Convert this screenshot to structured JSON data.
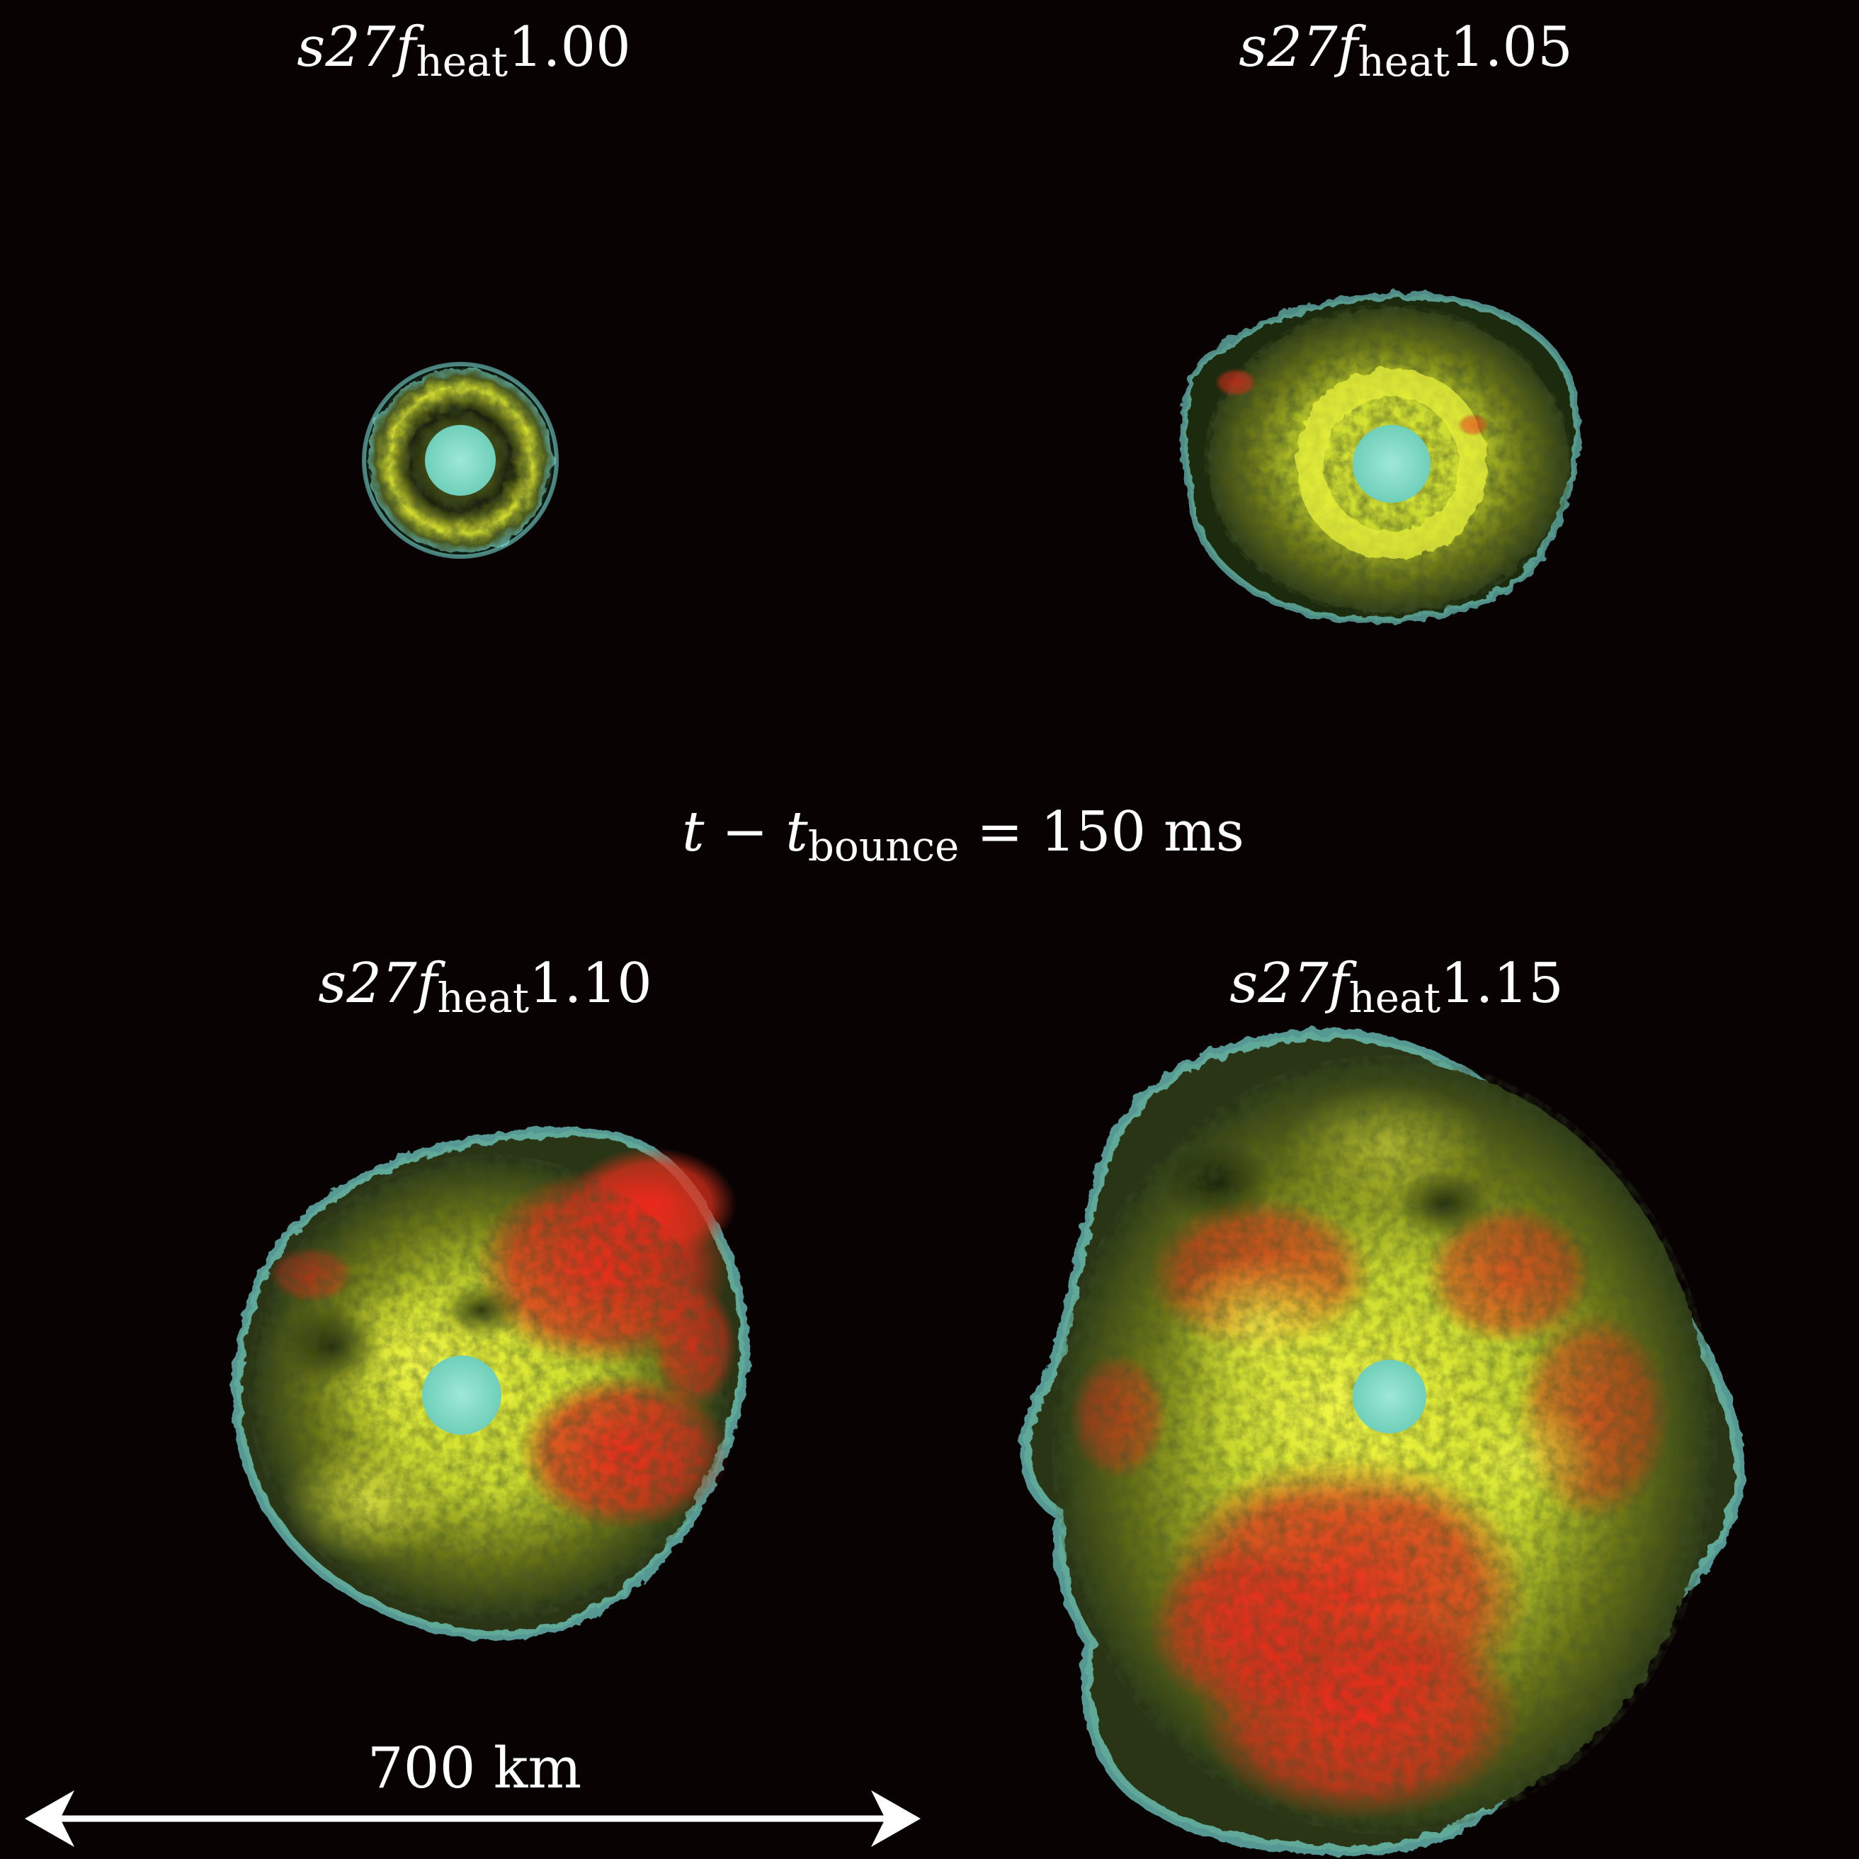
{
  "panels": [
    {
      "model": "s27",
      "var": "f",
      "sub": "heat",
      "value": "1.00"
    },
    {
      "model": "s27",
      "var": "f",
      "sub": "heat",
      "value": "1.05"
    },
    {
      "model": "s27",
      "var": "f",
      "sub": "heat",
      "value": "1.10"
    },
    {
      "model": "s27",
      "var": "f",
      "sub": "heat",
      "value": "1.15"
    }
  ],
  "time": {
    "var": "t",
    "minus": "−",
    "var2": "t",
    "sub": "bounce",
    "equals": "=",
    "value": "150 ms"
  },
  "scale_bar": {
    "label": "700 km"
  },
  "colors": {
    "background": "#080203",
    "shock_surface": "#7fe8e0",
    "low_entropy": "#e8f03a",
    "high_entropy": "#e8241e",
    "protoneutron_star": "#78d8c0"
  }
}
